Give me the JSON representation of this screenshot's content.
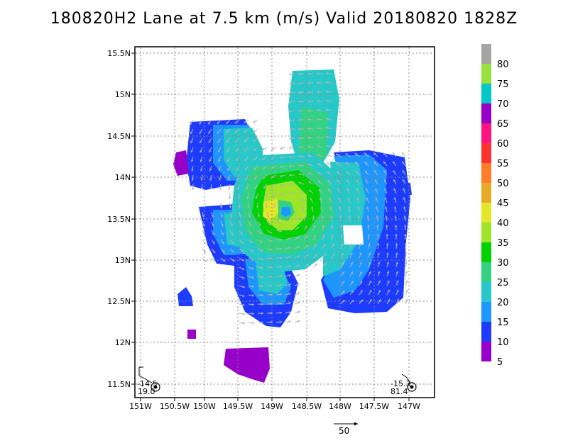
{
  "title": "180820H2 Lane at 7.5 km (m/s) Valid 20180820 1828Z",
  "axes": {
    "lon_ticks": [
      "151W",
      "150.5W",
      "150W",
      "149.5W",
      "149W",
      "148.5W",
      "148W",
      "147.5W",
      "147W"
    ],
    "lat_ticks": [
      "15.5N",
      "15N",
      "14.5N",
      "14N",
      "13.5N",
      "13N",
      "12.5N",
      "12N",
      "11.5N"
    ]
  },
  "colorbar": {
    "labels": [
      "80",
      "75",
      "70",
      "65",
      "60",
      "55",
      "50",
      "45",
      "40",
      "35",
      "30",
      "25",
      "20",
      "15",
      "10",
      "5"
    ],
    "colors": [
      "#a5a5a5",
      "#96e13c",
      "#00c8c8",
      "#9600c8",
      "#ff1482",
      "#ff3232",
      "#ff7d28",
      "#e6aa28",
      "#e6e628",
      "#9fe628",
      "#00d200",
      "#32d282",
      "#28c8c8",
      "#1e96ff",
      "#1e3cff",
      "#9600c8"
    ]
  },
  "storm_markers": [
    {
      "line1": "-14.5",
      "line2": "19.0"
    },
    {
      "line1": "-15.3",
      "line2": "81.4"
    }
  ],
  "reference_vector": {
    "label": "50"
  }
}
